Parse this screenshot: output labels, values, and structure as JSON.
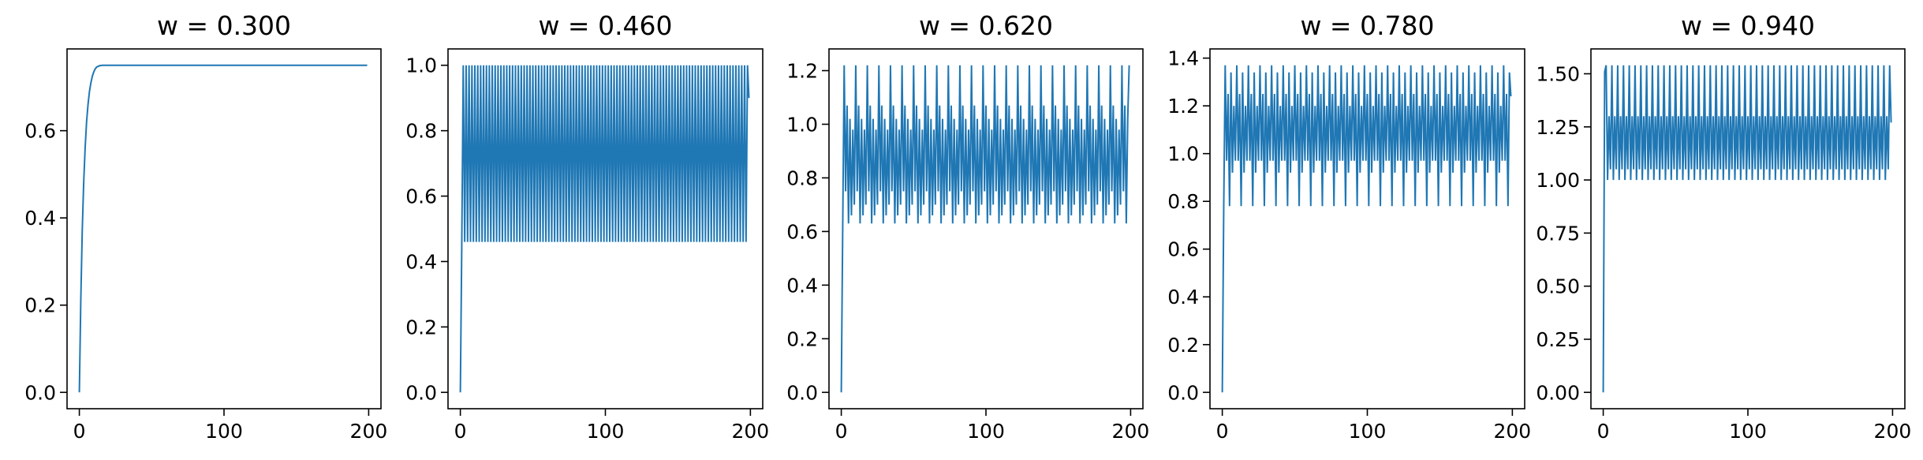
{
  "chart_data": [
    {
      "type": "line",
      "title": "w =  0.300",
      "xlabel": "",
      "ylabel": "",
      "xlim": [
        -8.5,
        208.5
      ],
      "ylim": [
        -0.0375,
        0.7875
      ],
      "xticks": [
        0,
        100,
        200
      ],
      "xtick_labels": [
        "0",
        "100",
        "200"
      ],
      "yticks": [
        0.0,
        0.2,
        0.4,
        0.6
      ],
      "ytick_labels": [
        "0.0",
        "0.2",
        "0.4",
        "0.6"
      ],
      "grid": false,
      "color": "#1f77b4",
      "series": [
        {
          "x_start": 0,
          "x_end": 199,
          "description_points": [
            [
              0,
              0.0
            ],
            [
              1,
              0.21
            ],
            [
              2,
              0.37
            ],
            [
              3,
              0.48
            ],
            [
              4,
              0.56
            ],
            [
              5,
              0.62
            ],
            [
              6,
              0.66
            ],
            [
              7,
              0.69
            ],
            [
              8,
              0.71
            ],
            [
              9,
              0.725
            ],
            [
              10,
              0.735
            ],
            [
              11,
              0.742
            ],
            [
              12,
              0.746
            ],
            [
              14,
              0.749
            ],
            [
              16,
              0.75
            ],
            [
              199,
              0.75
            ]
          ]
        }
      ]
    },
    {
      "type": "line",
      "title": "w =  0.460",
      "xlabel": "",
      "ylabel": "",
      "xlim": [
        -8.5,
        208.5
      ],
      "ylim": [
        -0.05,
        1.05
      ],
      "xticks": [
        0,
        100,
        200
      ],
      "xtick_labels": [
        "0",
        "100",
        "200"
      ],
      "yticks": [
        0.0,
        0.2,
        0.4,
        0.6,
        0.8,
        1.0
      ],
      "ytick_labels": [
        "0.0",
        "0.2",
        "0.4",
        "0.6",
        "0.8",
        "1.0"
      ],
      "grid": false,
      "color": "#1f77b4",
      "series": [
        {
          "x_start": 0,
          "x_end": 199,
          "initial": [
            0.0,
            0.46
          ],
          "oscillation": {
            "period": 4,
            "cycle": [
              1.0,
              0.46,
              1.0,
              0.46
            ]
          },
          "last_value": 0.9
        }
      ]
    },
    {
      "type": "line",
      "title": "w =  0.620",
      "xlabel": "",
      "ylabel": "",
      "xlim": [
        -8.5,
        208.5
      ],
      "ylim": [
        -0.061,
        1.281
      ],
      "xticks": [
        0,
        100,
        200
      ],
      "xtick_labels": [
        "0",
        "100",
        "200"
      ],
      "yticks": [
        0.0,
        0.2,
        0.4,
        0.6,
        0.8,
        1.0,
        1.2
      ],
      "ytick_labels": [
        "0.0",
        "0.2",
        "0.4",
        "0.6",
        "0.8",
        "1.0",
        "1.2"
      ],
      "grid": false,
      "color": "#1f77b4",
      "series": [
        {
          "x_start": 0,
          "x_end": 199,
          "initial": [
            0.0,
            0.62
          ],
          "oscillation": {
            "period": 8,
            "cycle": [
              1.22,
              0.75,
              1.07,
              0.63,
              1.02,
              0.66,
              0.98,
              0.7
            ]
          },
          "last_value": 1.22
        }
      ]
    },
    {
      "type": "line",
      "title": "w =  0.780",
      "xlabel": "",
      "ylabel": "",
      "xlim": [
        -8.5,
        208.5
      ],
      "ylim": [
        -0.0685,
        1.4385
      ],
      "xticks": [
        0,
        100,
        200
      ],
      "xtick_labels": [
        "0",
        "100",
        "200"
      ],
      "yticks": [
        0.0,
        0.2,
        0.4,
        0.6,
        0.8,
        1.0,
        1.2,
        1.4
      ],
      "ytick_labels": [
        "0.0",
        "0.2",
        "0.4",
        "0.6",
        "0.8",
        "1.0",
        "1.2",
        "1.4"
      ],
      "grid": false,
      "color": "#1f77b4",
      "series": [
        {
          "x_start": 0,
          "x_end": 199,
          "initial": [
            0.0,
            0.78
          ],
          "oscillation": {
            "period": 8,
            "cycle": [
              1.37,
              0.97,
              1.25,
              0.78,
              1.34,
              0.92,
              1.2,
              0.97
            ]
          },
          "last_value": 1.24
        }
      ]
    },
    {
      "type": "line",
      "title": "w =  0.940",
      "xlabel": "",
      "ylabel": "",
      "xlim": [
        -8.5,
        208.5
      ],
      "ylim": [
        -0.077,
        1.617
      ],
      "xticks": [
        0,
        100,
        200
      ],
      "xtick_labels": [
        "0",
        "100",
        "200"
      ],
      "yticks": [
        0.0,
        0.25,
        0.5,
        0.75,
        1.0,
        1.25,
        1.5
      ],
      "ytick_labels": [
        "0.00",
        "0.25",
        "0.50",
        "0.75",
        "1.00",
        "1.25",
        "1.50"
      ],
      "grid": false,
      "color": "#1f77b4",
      "series": [
        {
          "x_start": 0,
          "x_end": 199,
          "initial": [
            0.0,
            1.51
          ],
          "oscillation": {
            "period": 4,
            "cycle": [
              1.54,
              1.0,
              1.3,
              1.05
            ]
          },
          "last_value": 1.27
        }
      ]
    }
  ]
}
